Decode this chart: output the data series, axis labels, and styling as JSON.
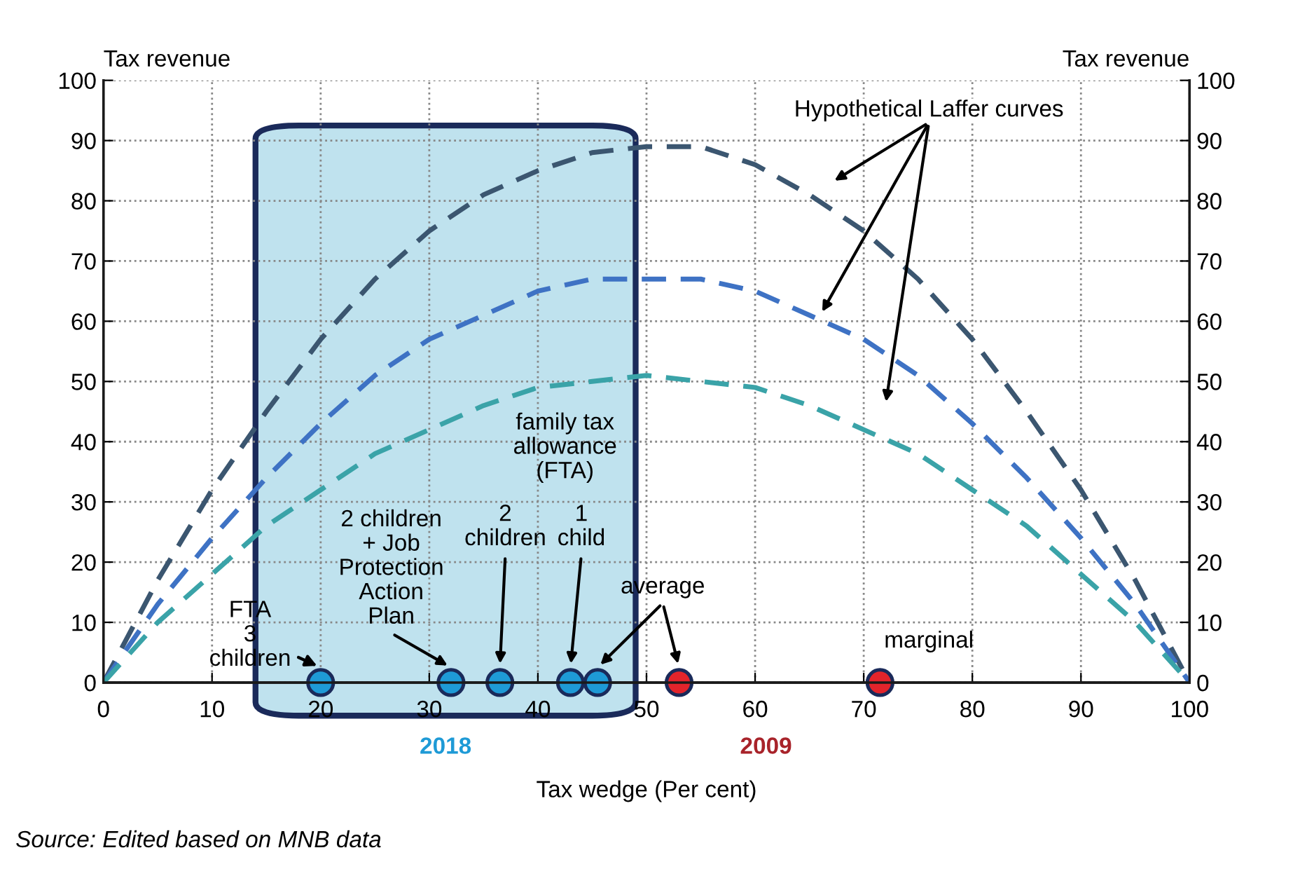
{
  "chart_data": {
    "type": "line",
    "xlabel": "Tax wedge (Per cent)",
    "ylabel": "Tax revenue",
    "y2label": "Tax revenue",
    "xlim": [
      0,
      100
    ],
    "xticks": [
      0,
      10,
      20,
      30,
      40,
      50,
      60,
      70,
      80,
      90,
      100
    ],
    "ylim": [
      0,
      100
    ],
    "yticks": [
      0,
      10,
      20,
      30,
      40,
      50,
      60,
      70,
      80,
      90,
      100
    ],
    "y2lim": [
      0,
      100
    ],
    "y2ticks": [
      0,
      10,
      20,
      30,
      40,
      50,
      60,
      70,
      80,
      90,
      100
    ],
    "grid": true,
    "line_style": "dashed",
    "x": [
      0,
      5,
      10,
      15,
      20,
      25,
      30,
      35,
      40,
      45,
      50,
      55,
      60,
      65,
      70,
      75,
      80,
      85,
      90,
      95,
      100
    ],
    "series": [
      {
        "color": "#3b5670",
        "values": [
          0,
          17,
          32,
          45,
          57,
          67,
          75,
          81,
          85,
          88,
          89,
          89,
          86,
          81,
          75,
          67,
          57,
          45,
          32,
          17,
          0
        ]
      },
      {
        "color": "#3e72c4",
        "values": [
          0,
          13,
          24,
          34,
          43,
          51,
          57,
          61,
          65,
          67,
          67,
          67,
          65,
          61,
          57,
          51,
          43,
          34,
          24,
          13,
          0
        ]
      },
      {
        "color": "#3aa3a8",
        "values": [
          0,
          10,
          18,
          26,
          32,
          38,
          42,
          46,
          49,
          50,
          51,
          50,
          49,
          46,
          42,
          38,
          32,
          26,
          18,
          10,
          0
        ]
      },
      {
        "type": "scatter",
        "color": "#1e9ad6",
        "x": [
          20,
          32,
          36.5,
          43,
          45.5
        ],
        "values": [
          0,
          0,
          0,
          0,
          0
        ]
      },
      {
        "type": "scatter",
        "color": "#e3242b",
        "x": [
          53,
          71.5
        ],
        "values": [
          0,
          0
        ]
      }
    ],
    "bands": [
      {
        "axis": "x",
        "from": 14,
        "to": 49,
        "label": "2018",
        "color": "#bfe2ee"
      }
    ],
    "annotations": [
      {
        "text": "FTA\n3\nchildren",
        "x": 20,
        "y": 0
      },
      "2 children\n+ Job\nProtection\nAction\nPlan",
      "2\nchildren",
      "family tax\nallowance\n(FTA)",
      "1\nchild",
      "average",
      {
        "text": "marginal",
        "x": 71.5,
        "y": 0
      },
      "Hypothetical Laffer curves",
      "2009",
      "Source: Edited based on MNB data"
    ]
  }
}
